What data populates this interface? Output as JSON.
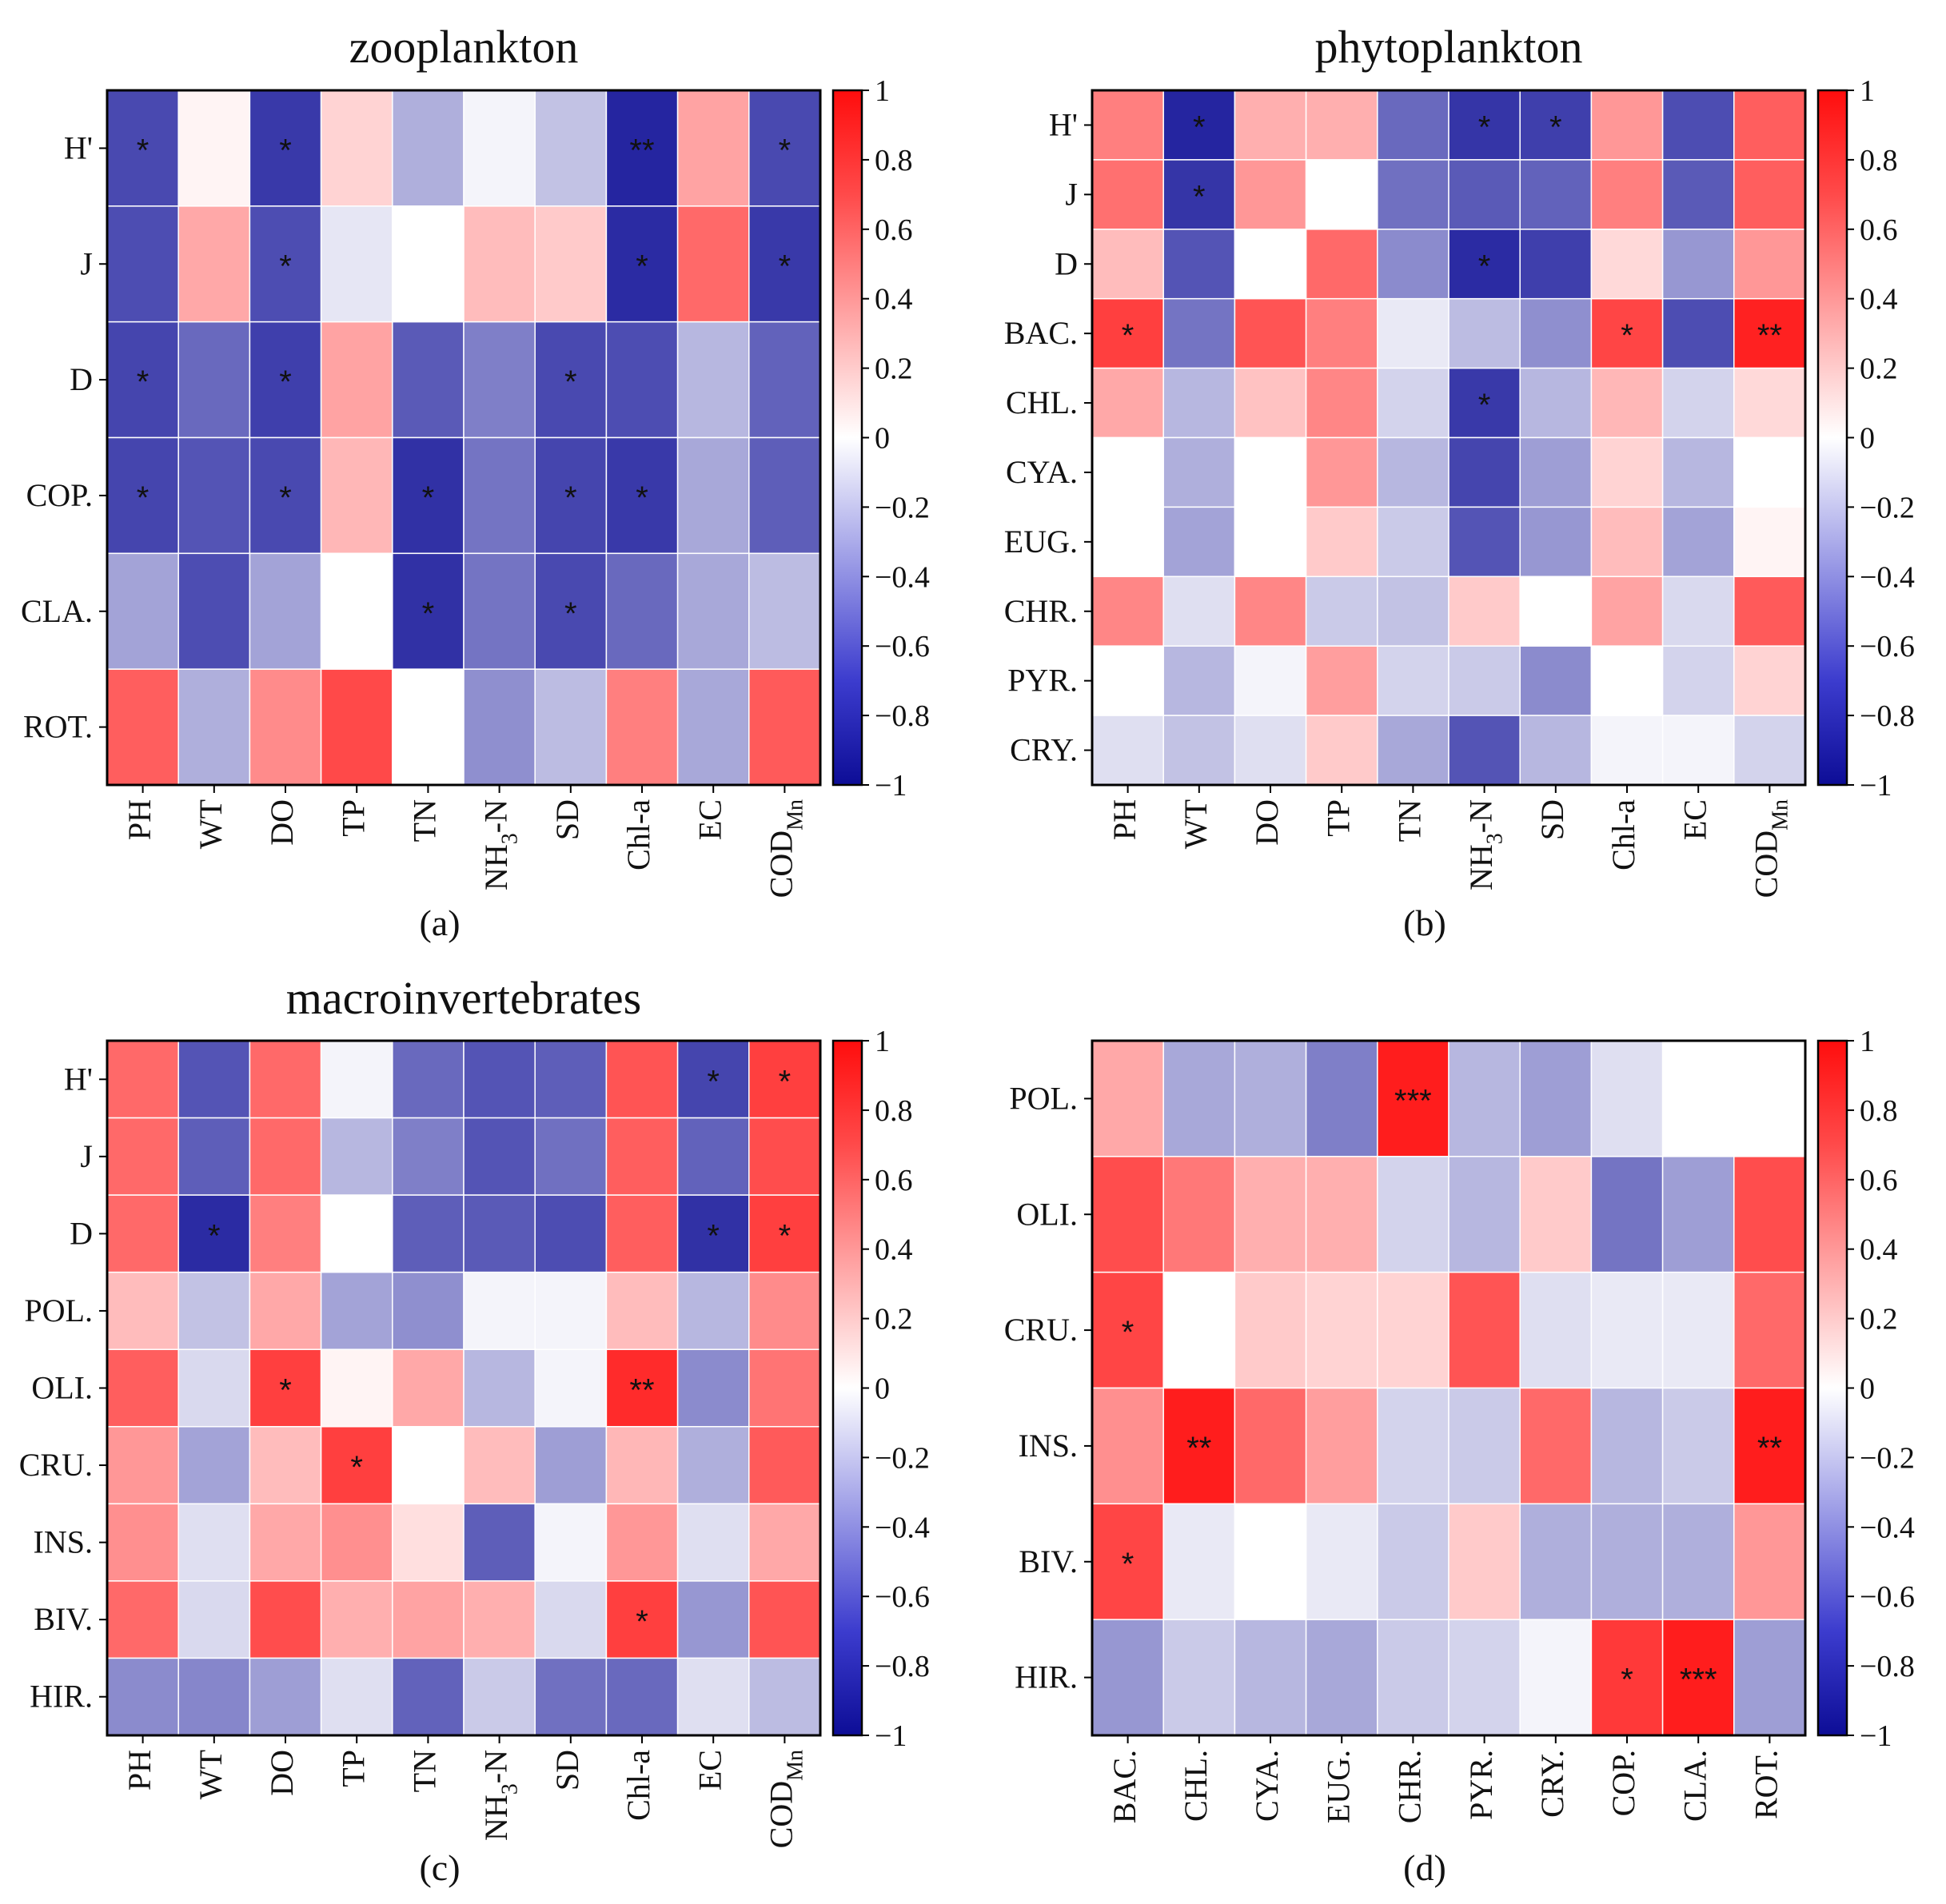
{
  "colors": {
    "negative": "#0d0d96",
    "zero": "#ffffff",
    "positive": "#ff0d0d",
    "grid": "#ffffff",
    "frame": "#000000"
  },
  "colorbar_ticks": [
    "1",
    "0.8",
    "0.6",
    "0.4",
    "0.2",
    "0",
    "−0.2",
    "−0.4",
    "−0.6",
    "−0.8",
    "−1"
  ],
  "chart_data": [
    {
      "type": "heatmap",
      "panel_label": "(a)",
      "title": "zooplankton",
      "colorbar_range": [
        -1,
        1
      ],
      "x_labels": [
        "PH",
        "WT",
        "DO",
        "TP",
        "TN",
        "NH3-N",
        "SD",
        "Chl-a",
        "EC",
        "CODMn"
      ],
      "y_labels": [
        "H'",
        "J",
        "D",
        "COP.",
        "CLA.",
        "ROT."
      ],
      "values": [
        [
          -0.7,
          0.02,
          -0.78,
          0.12,
          -0.25,
          -0.02,
          -0.18,
          -0.88,
          0.3,
          -0.7
        ],
        [
          -0.68,
          0.28,
          -0.68,
          -0.06,
          0.0,
          0.2,
          0.15,
          -0.85,
          0.55,
          -0.78
        ],
        [
          -0.72,
          -0.55,
          -0.75,
          0.3,
          -0.62,
          -0.45,
          -0.7,
          -0.68,
          -0.22,
          -0.58
        ],
        [
          -0.72,
          -0.65,
          -0.7,
          0.22,
          -0.82,
          -0.5,
          -0.72,
          -0.78,
          -0.28,
          -0.6
        ],
        [
          -0.3,
          -0.68,
          -0.3,
          0.0,
          -0.82,
          -0.5,
          -0.7,
          -0.55,
          -0.28,
          -0.2
        ],
        [
          0.6,
          -0.25,
          0.4,
          0.7,
          0.0,
          -0.38,
          -0.2,
          0.45,
          -0.28,
          0.62
        ]
      ],
      "stars": [
        [
          "*",
          "",
          "*",
          "",
          "",
          "",
          "",
          "**",
          "",
          "*"
        ],
        [
          "",
          "",
          "*",
          "",
          "",
          "",
          "",
          "*",
          "",
          "*"
        ],
        [
          "*",
          "",
          "*",
          "",
          "",
          "",
          "*",
          "",
          "",
          ""
        ],
        [
          "*",
          "",
          "*",
          "",
          "*",
          "",
          "*",
          "*",
          "",
          ""
        ],
        [
          "",
          "",
          "",
          "",
          "*",
          "",
          "*",
          "",
          "",
          ""
        ],
        [
          "",
          "",
          "",
          "",
          "",
          "",
          "",
          "",
          "",
          ""
        ]
      ]
    },
    {
      "type": "heatmap",
      "panel_label": "(b)",
      "title": "phytoplankton",
      "colorbar_range": [
        -1,
        1
      ],
      "x_labels": [
        "PH",
        "WT",
        "DO",
        "TP",
        "TN",
        "NH3-N",
        "SD",
        "Chl-a",
        "EC",
        "CODMn"
      ],
      "y_labels": [
        "H'",
        "J",
        "D",
        "BAC.",
        "CHL.",
        "CYA.",
        "EUG.",
        "CHR.",
        "PYR.",
        "CRY."
      ],
      "values": [
        [
          0.45,
          -0.88,
          0.25,
          0.25,
          -0.55,
          -0.8,
          -0.75,
          0.35,
          -0.68,
          0.6
        ],
        [
          0.52,
          -0.8,
          0.35,
          0.0,
          -0.52,
          -0.62,
          -0.58,
          0.45,
          -0.62,
          0.6
        ],
        [
          0.2,
          -0.65,
          0.0,
          0.55,
          -0.4,
          -0.85,
          -0.75,
          0.1,
          -0.35,
          0.35
        ],
        [
          0.75,
          -0.5,
          0.65,
          0.45,
          -0.05,
          -0.2,
          -0.38,
          0.72,
          -0.68,
          0.9
        ],
        [
          0.28,
          -0.22,
          0.18,
          0.42,
          -0.12,
          -0.78,
          -0.22,
          0.22,
          -0.12,
          0.1
        ],
        [
          0.0,
          -0.25,
          0.0,
          0.35,
          -0.22,
          -0.72,
          -0.32,
          0.12,
          -0.22,
          0.0
        ],
        [
          0.0,
          -0.3,
          0.0,
          0.15,
          -0.15,
          -0.65,
          -0.35,
          0.2,
          -0.3,
          0.02
        ],
        [
          0.42,
          -0.08,
          0.42,
          -0.15,
          -0.18,
          0.15,
          0.0,
          0.3,
          -0.1,
          0.62
        ],
        [
          0.0,
          -0.22,
          -0.02,
          0.32,
          -0.12,
          -0.15,
          -0.4,
          0.0,
          -0.12,
          0.12
        ],
        [
          -0.08,
          -0.18,
          -0.08,
          0.15,
          -0.28,
          -0.65,
          -0.22,
          -0.02,
          -0.02,
          -0.12
        ]
      ],
      "stars": [
        [
          "",
          "*",
          "",
          "",
          "",
          "*",
          "*",
          "",
          "",
          ""
        ],
        [
          "",
          "*",
          "",
          "",
          "",
          "",
          "",
          "",
          "",
          ""
        ],
        [
          "",
          "",
          "",
          "",
          "",
          "*",
          "",
          "",
          "",
          ""
        ],
        [
          "*",
          "",
          "",
          "",
          "",
          "",
          "",
          "*",
          "",
          "**"
        ],
        [
          "",
          "",
          "",
          "",
          "",
          "*",
          "",
          "",
          "",
          ""
        ],
        [
          "",
          "",
          "",
          "",
          "",
          "",
          "",
          "",
          "",
          ""
        ],
        [
          "",
          "",
          "",
          "",
          "",
          "",
          "",
          "",
          "",
          ""
        ],
        [
          "",
          "",
          "",
          "",
          "",
          "",
          "",
          "",
          "",
          ""
        ],
        [
          "",
          "",
          "",
          "",
          "",
          "",
          "",
          "",
          "",
          ""
        ],
        [
          "",
          "",
          "",
          "",
          "",
          "",
          "",
          "",
          "",
          ""
        ]
      ]
    },
    {
      "type": "heatmap",
      "panel_label": "(c)",
      "title": "macroinvertebrates",
      "colorbar_range": [
        -1,
        1
      ],
      "x_labels": [
        "PH",
        "WT",
        "DO",
        "TP",
        "TN",
        "NH3-N",
        "SD",
        "Chl-a",
        "EC",
        "CODMn"
      ],
      "y_labels": [
        "H'",
        "J",
        "D",
        "POL.",
        "OLI.",
        "CRU.",
        "INS.",
        "BIV.",
        "HIR."
      ],
      "values": [
        [
          0.55,
          -0.65,
          0.55,
          -0.02,
          -0.55,
          -0.65,
          -0.6,
          0.65,
          -0.72,
          0.75
        ],
        [
          0.55,
          -0.6,
          0.55,
          -0.22,
          -0.45,
          -0.65,
          -0.52,
          0.6,
          -0.58,
          0.68
        ],
        [
          0.55,
          -0.85,
          0.45,
          0.0,
          -0.6,
          -0.62,
          -0.68,
          0.6,
          -0.82,
          0.75
        ],
        [
          0.2,
          -0.18,
          0.28,
          -0.3,
          -0.38,
          -0.02,
          -0.02,
          0.2,
          -0.22,
          0.4
        ],
        [
          0.6,
          -0.1,
          0.75,
          0.02,
          0.28,
          -0.22,
          -0.02,
          0.85,
          -0.4,
          0.5
        ],
        [
          0.35,
          -0.3,
          0.2,
          0.75,
          0.0,
          0.2,
          -0.32,
          0.22,
          -0.25,
          0.62
        ],
        [
          0.38,
          -0.08,
          0.28,
          0.38,
          0.08,
          -0.6,
          -0.02,
          0.35,
          -0.08,
          0.28
        ],
        [
          0.55,
          -0.1,
          0.68,
          0.25,
          0.3,
          0.25,
          -0.1,
          0.75,
          -0.35,
          0.65
        ],
        [
          -0.4,
          -0.42,
          -0.32,
          -0.08,
          -0.58,
          -0.15,
          -0.52,
          -0.55,
          -0.08,
          -0.2
        ]
      ],
      "stars": [
        [
          "",
          "",
          "",
          "",
          "",
          "",
          "",
          "",
          "*",
          "*"
        ],
        [
          "",
          "",
          "",
          "",
          "",
          "",
          "",
          "",
          "",
          ""
        ],
        [
          "",
          "*",
          "",
          "",
          "",
          "",
          "",
          "",
          "*",
          "*"
        ],
        [
          "",
          "",
          "",
          "",
          "",
          "",
          "",
          "",
          "",
          ""
        ],
        [
          "",
          "",
          "*",
          "",
          "",
          "",
          "",
          "**",
          "",
          ""
        ],
        [
          "",
          "",
          "",
          "*",
          "",
          "",
          "",
          "",
          "",
          ""
        ],
        [
          "",
          "",
          "",
          "",
          "",
          "",
          "",
          "",
          "",
          ""
        ],
        [
          "",
          "",
          "",
          "",
          "",
          "",
          "",
          "*",
          "",
          ""
        ],
        [
          "",
          "",
          "",
          "",
          "",
          "",
          "",
          "",
          "",
          ""
        ]
      ]
    },
    {
      "type": "heatmap",
      "panel_label": "(d)",
      "title": "",
      "colorbar_range": [
        -1,
        1
      ],
      "x_labels": [
        "BAC.",
        "CHL.",
        "CYA.",
        "EUG.",
        "CHR.",
        "PYR.",
        "CRY.",
        "COP.",
        "CLA.",
        "ROT."
      ],
      "y_labels": [
        "POL.",
        "OLI.",
        "CRU.",
        "INS.",
        "BIV.",
        "HIR."
      ],
      "values": [
        [
          0.28,
          -0.28,
          -0.25,
          -0.45,
          0.92,
          -0.22,
          -0.32,
          -0.08,
          0.0,
          0.0
        ],
        [
          0.68,
          0.48,
          0.25,
          0.25,
          -0.12,
          -0.22,
          0.15,
          -0.5,
          -0.32,
          0.68
        ],
        [
          0.72,
          0.0,
          0.15,
          0.12,
          0.12,
          0.65,
          -0.08,
          -0.05,
          -0.05,
          0.55
        ],
        [
          0.38,
          0.92,
          0.55,
          0.32,
          -0.12,
          -0.15,
          0.55,
          -0.22,
          -0.15,
          0.92
        ],
        [
          0.72,
          -0.05,
          0.0,
          -0.05,
          -0.15,
          0.15,
          -0.25,
          -0.25,
          -0.25,
          0.35
        ],
        [
          -0.35,
          -0.15,
          -0.22,
          -0.28,
          -0.15,
          -0.12,
          -0.02,
          0.78,
          0.92,
          -0.32
        ]
      ],
      "stars": [
        [
          "",
          "",
          "",
          "",
          "***",
          "",
          "",
          "",
          "",
          ""
        ],
        [
          "",
          "",
          "",
          "",
          "",
          "",
          "",
          "",
          "",
          ""
        ],
        [
          "*",
          "",
          "",
          "",
          "",
          "",
          "",
          "",
          "",
          ""
        ],
        [
          "",
          "**",
          "",
          "",
          "",
          "",
          "",
          "",
          "",
          "**"
        ],
        [
          "*",
          "",
          "",
          "",
          "",
          "",
          "",
          "",
          "",
          ""
        ],
        [
          "",
          "",
          "",
          "",
          "",
          "",
          "",
          "*",
          "***",
          ""
        ]
      ]
    }
  ]
}
